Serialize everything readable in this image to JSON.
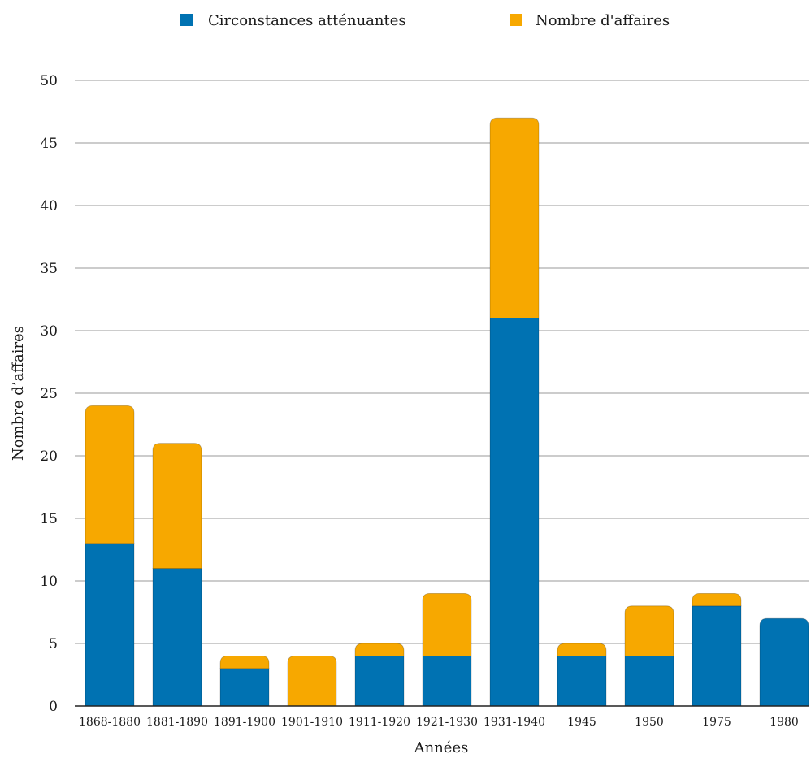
{
  "chart_data": {
    "type": "bar",
    "stacked": true,
    "categories": [
      "1868-1880",
      "1881-1890",
      "1891-1900",
      "1901-1910",
      "1911-1920",
      "1921-1930",
      "1931-1940",
      "1945",
      "1950",
      "1975",
      "1980"
    ],
    "series": [
      {
        "name": "Circonstances atténuantes",
        "color": "#0072b2",
        "values": [
          13,
          11,
          3,
          0,
          4,
          4,
          31,
          4,
          4,
          8,
          7
        ]
      },
      {
        "name": "Nombre d'affaires",
        "color": "#f7a800",
        "values": [
          11,
          10,
          1,
          4,
          1,
          5,
          16,
          1,
          4,
          1,
          0
        ]
      }
    ],
    "xlabel": "Années",
    "ylabel": "Nombre d’affaires",
    "ylim": [
      0,
      50
    ],
    "yticks": [
      0,
      5,
      10,
      15,
      20,
      25,
      30,
      35,
      40,
      45,
      50
    ],
    "grid": true,
    "legend_position": "top"
  }
}
